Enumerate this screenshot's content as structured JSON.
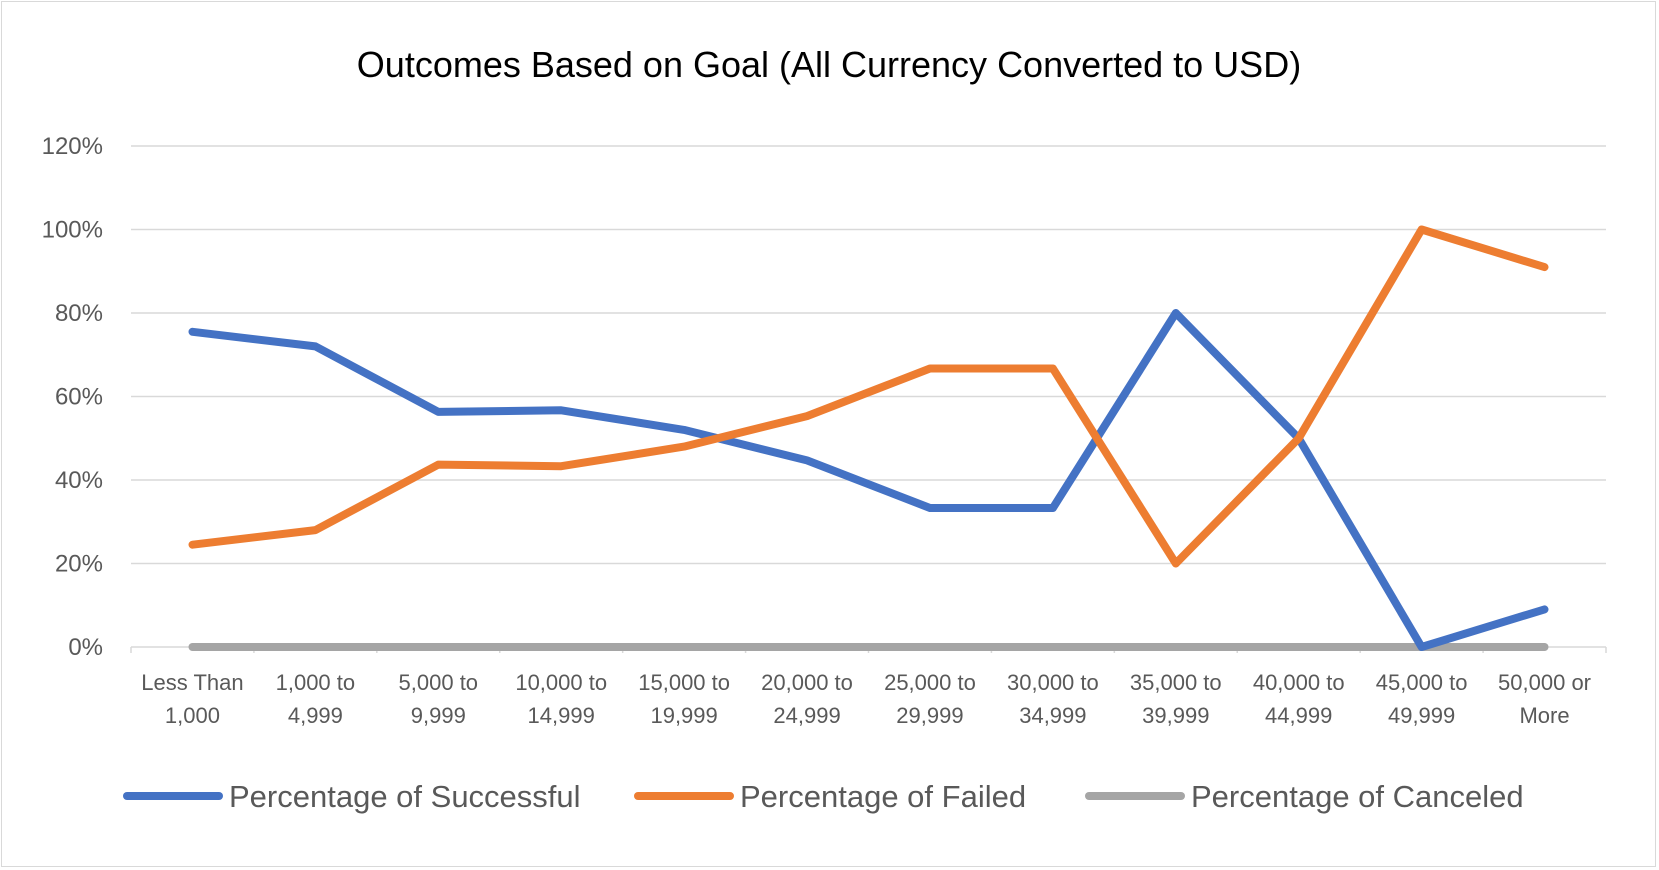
{
  "chart_data": {
    "type": "line",
    "title": "Outcomes Based on Goal (All Currency Converted to USD)",
    "xlabel": "",
    "ylabel": "",
    "ylim": [
      0,
      1.2
    ],
    "y_ticks": [
      0,
      0.2,
      0.4,
      0.6,
      0.8,
      1.0,
      1.2
    ],
    "y_tick_labels": [
      "0%",
      "20%",
      "40%",
      "60%",
      "80%",
      "100%",
      "120%"
    ],
    "categories": [
      [
        "Less Than",
        "1,000"
      ],
      [
        "1,000 to",
        "4,999"
      ],
      [
        "5,000 to",
        "9,999"
      ],
      [
        "10,000 to",
        "14,999"
      ],
      [
        "15,000 to",
        "19,999"
      ],
      [
        "20,000 to",
        "24,999"
      ],
      [
        "25,000 to",
        "29,999"
      ],
      [
        "30,000 to",
        "34,999"
      ],
      [
        "35,000 to",
        "39,999"
      ],
      [
        "40,000 to",
        "44,999"
      ],
      [
        "45,000 to",
        "49,999"
      ],
      [
        "50,000 or",
        "More"
      ]
    ],
    "grid": "horizontal",
    "legend_position": "bottom",
    "series": [
      {
        "name": "Percentage of Successful",
        "color": "#4472c4",
        "values": [
          0.755,
          0.72,
          0.563,
          0.567,
          0.52,
          0.447,
          0.333,
          0.333,
          0.8,
          0.5,
          0.0,
          0.09
        ]
      },
      {
        "name": "Percentage of Failed",
        "color": "#ed7d31",
        "values": [
          0.245,
          0.28,
          0.437,
          0.433,
          0.48,
          0.553,
          0.667,
          0.667,
          0.2,
          0.5,
          1.0,
          0.91
        ]
      },
      {
        "name": "Percentage of Canceled",
        "color": "#a5a5a5",
        "values": [
          0,
          0,
          0,
          0,
          0,
          0,
          0,
          0,
          0,
          0,
          0,
          0
        ]
      }
    ]
  }
}
